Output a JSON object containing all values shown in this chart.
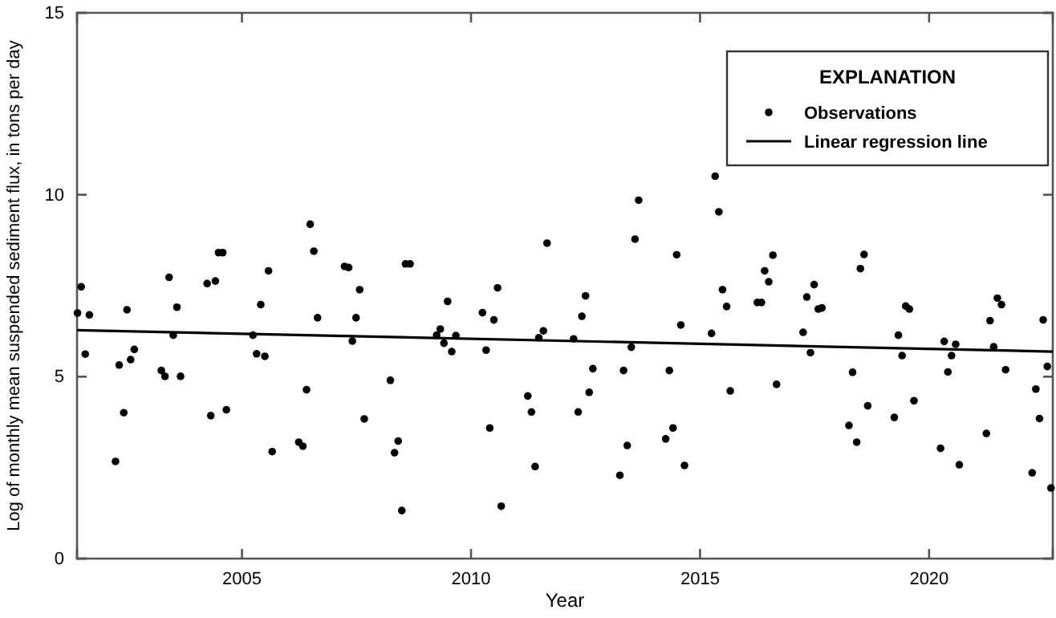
{
  "chart_data": {
    "type": "scatter",
    "xlabel": "Year",
    "ylabel": "Log of monthly mean suspended sediment flux, in tons per day",
    "legend_title": "EXPLANATION",
    "legend": "top right",
    "grid": false,
    "xlim": [
      2001.4,
      2022.7
    ],
    "xticks": [
      2005,
      2010,
      2015,
      2020
    ],
    "ylim": [
      0,
      15
    ],
    "yticks": [
      0,
      5,
      10,
      15
    ],
    "series": [
      {
        "name": "Observations",
        "marker": "circle",
        "color": "#000000",
        "x": [
          2001.41,
          2001.49,
          2001.58,
          2001.67,
          2002.24,
          2002.32,
          2002.42,
          2002.49,
          2002.57,
          2002.65,
          2003.24,
          2003.32,
          2003.41,
          2003.5,
          2003.58,
          2003.66,
          2004.24,
          2004.32,
          2004.42,
          2004.49,
          2004.58,
          2004.66,
          2005.24,
          2005.32,
          2005.41,
          2005.5,
          2005.58,
          2005.66,
          2006.24,
          2006.33,
          2006.41,
          2006.49,
          2006.57,
          2006.65,
          2007.24,
          2007.33,
          2007.41,
          2007.49,
          2007.57,
          2007.67,
          2008.24,
          2008.33,
          2008.41,
          2008.49,
          2008.57,
          2008.67,
          2009.25,
          2009.33,
          2009.41,
          2009.49,
          2009.58,
          2009.67,
          2010.25,
          2010.33,
          2010.41,
          2010.5,
          2010.58,
          2010.66,
          2011.24,
          2011.32,
          2011.4,
          2011.48,
          2011.58,
          2011.66,
          2012.24,
          2012.34,
          2012.42,
          2012.5,
          2012.58,
          2012.66,
          2013.25,
          2013.33,
          2013.41,
          2013.5,
          2013.58,
          2013.66,
          2014.25,
          2014.33,
          2014.41,
          2014.49,
          2014.58,
          2014.66,
          2015.25,
          2015.33,
          2015.41,
          2015.49,
          2015.58,
          2015.66,
          2016.25,
          2016.34,
          2016.41,
          2016.5,
          2016.59,
          2016.67,
          2017.25,
          2017.33,
          2017.41,
          2017.49,
          2017.58,
          2017.66,
          2018.25,
          2018.33,
          2018.42,
          2018.5,
          2018.58,
          2018.66,
          2019.24,
          2019.33,
          2019.41,
          2019.49,
          2019.57,
          2019.67,
          2020.25,
          2020.33,
          2020.41,
          2020.49,
          2020.58,
          2020.66,
          2021.25,
          2021.33,
          2021.41,
          2021.49,
          2021.58,
          2021.67,
          2022.25,
          2022.33,
          2022.41,
          2022.49,
          2022.58,
          2022.66
        ],
        "values": [
          6.75,
          7.47,
          5.62,
          6.7,
          2.67,
          5.32,
          4.01,
          6.84,
          5.47,
          5.75,
          5.17,
          5.01,
          7.73,
          6.14,
          6.91,
          5.01,
          7.56,
          3.93,
          7.63,
          8.41,
          8.41,
          4.09,
          6.14,
          5.63,
          6.98,
          5.56,
          7.91,
          2.94,
          3.2,
          3.09,
          4.64,
          9.19,
          8.45,
          6.62,
          8.03,
          8.0,
          5.98,
          6.62,
          7.39,
          3.84,
          4.9,
          2.91,
          3.23,
          1.32,
          8.1,
          8.1,
          6.14,
          6.31,
          5.92,
          7.07,
          5.69,
          6.13,
          6.76,
          5.73,
          3.59,
          6.56,
          7.44,
          1.44,
          4.47,
          4.03,
          2.53,
          6.07,
          6.26,
          8.67,
          6.04,
          4.03,
          6.66,
          7.22,
          4.57,
          5.22,
          2.29,
          5.17,
          3.11,
          5.81,
          8.78,
          9.85,
          3.29,
          5.17,
          3.59,
          8.35,
          6.42,
          2.56,
          6.19,
          10.51,
          9.53,
          7.39,
          6.93,
          4.61,
          7.04,
          7.04,
          7.91,
          7.61,
          8.34,
          4.79,
          6.22,
          7.19,
          5.66,
          7.53,
          6.86,
          6.89,
          3.66,
          5.12,
          3.2,
          7.97,
          8.36,
          4.2,
          3.88,
          6.14,
          5.58,
          6.94,
          6.86,
          4.34,
          3.03,
          5.97,
          5.13,
          5.58,
          5.89,
          2.58,
          3.44,
          6.54,
          5.82,
          7.16,
          6.98,
          5.19,
          2.36,
          4.66,
          3.85,
          6.56,
          5.28,
          1.94
        ]
      },
      {
        "name": "Linear regression line",
        "type": "line",
        "line_style": "solid",
        "color": "#000000",
        "x": [
          2001.4,
          2022.7
        ],
        "values": [
          6.28,
          5.69
        ]
      }
    ]
  }
}
